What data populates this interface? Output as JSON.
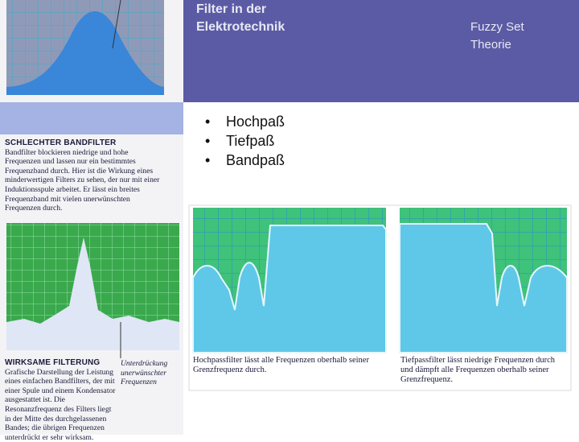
{
  "header": {
    "title": "Filter in der Elektrotechnik",
    "side_title": "Fuzzy Set Theorie"
  },
  "bullets": [
    "Hochpaß",
    "Tiefpaß",
    "Bandpaß"
  ],
  "left_panel": {
    "heading_1": "SCHLECHTER BANDFILTER",
    "text_1": "Bandfilter blockieren niedrige und hohe Frequenzen und lassen nur ein bestimmtes Frequenzband durch. Hier ist die Wirkung eines minderwertigen Filters zu sehen, der nur mit einer Induktionsspule arbeitet. Er lässt ein breites Frequenzband mit vielen unerwünschten Frequenzen durch.",
    "heading_2": "WIRKSAME FILTERUNG",
    "text_2": "Grafische Darstellung der Leistung eines einfachen Bandfilters, der mit einer Spule und einem Kondensator ausgestattet ist. Die Resonanzfrequenz des Filters liegt in der Mitte des durchgelassenen Bandes; die übrigen Frequenzen unterdrückt er sehr wirksam.",
    "side_note": "Unterdrückung unerwünschter Frequenzen"
  },
  "right_panel": {
    "caption_1": "Hochpassfilter lässt alle Frequenzen oberhalb seiner Grenzfrequenz durch.",
    "caption_2": "Tiefpassfilter lässt niedrige Frequenzen durch und dämpft alle Frequenzen oberhalb seiner Grenzfrequenz."
  }
}
